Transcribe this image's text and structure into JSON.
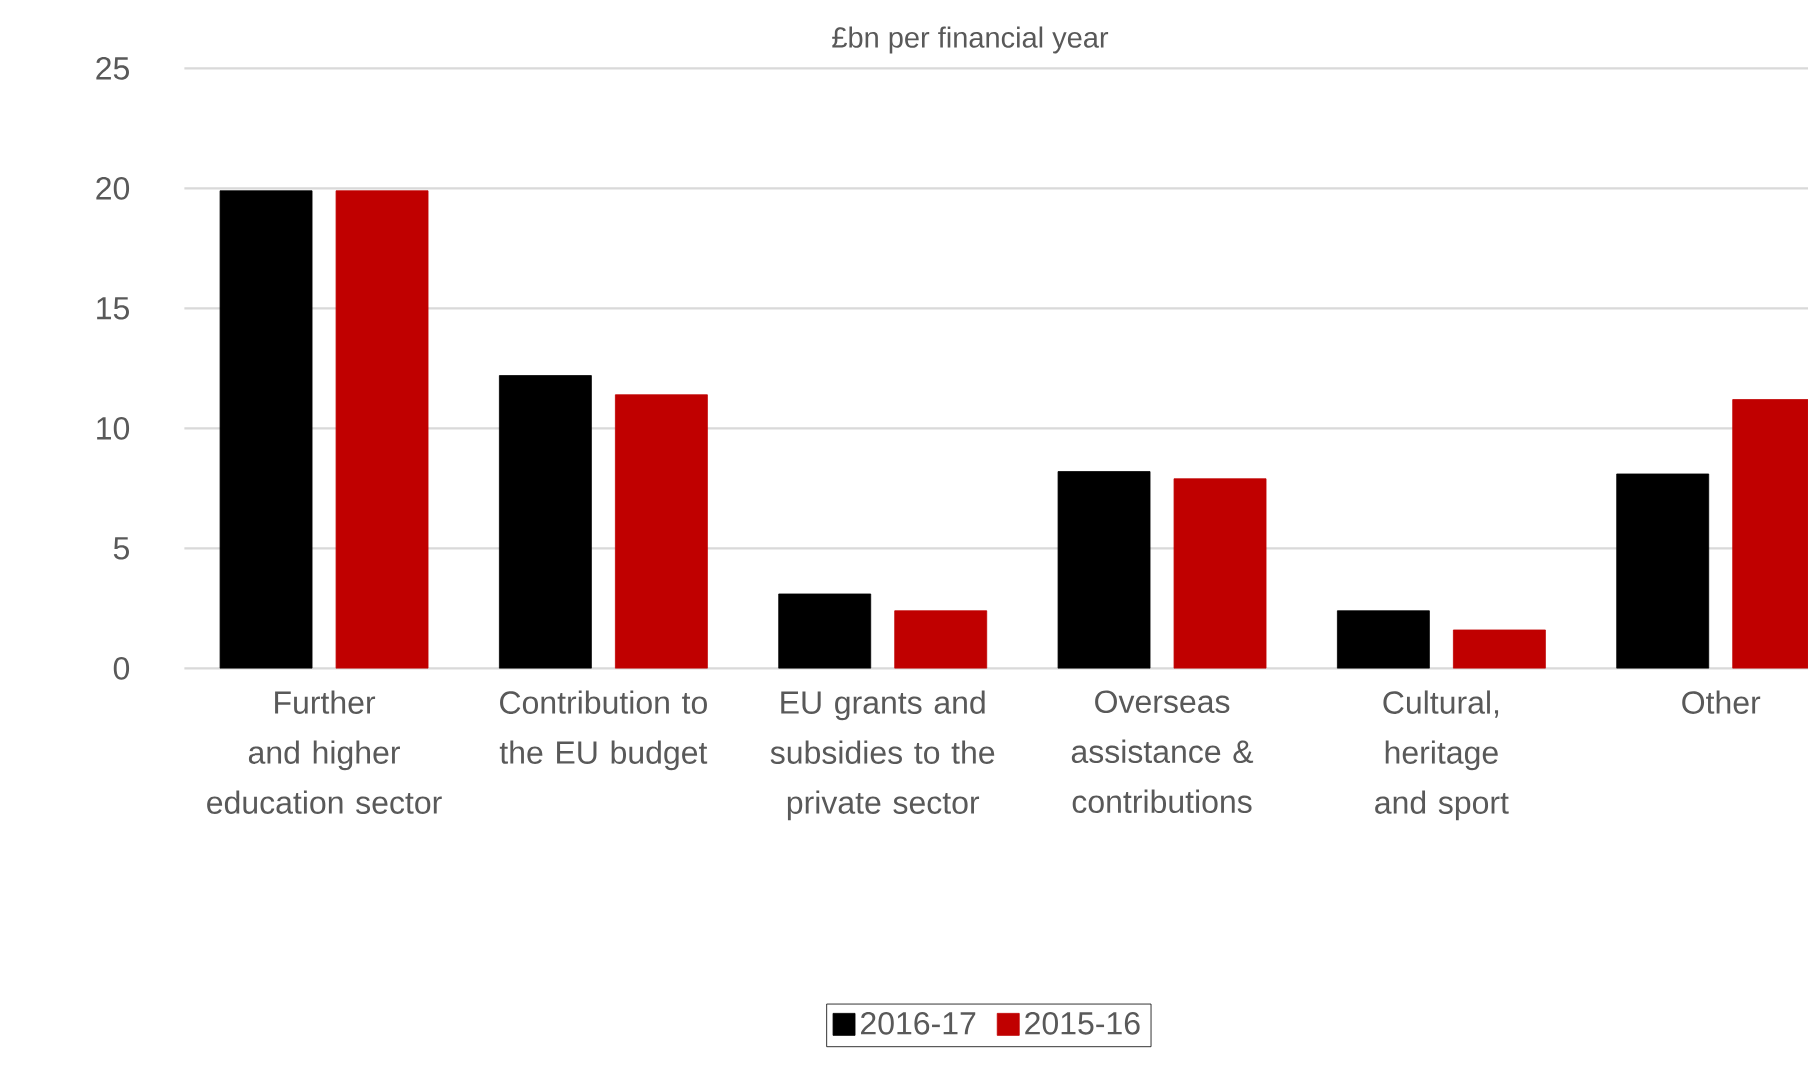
{
  "chart_data": {
    "type": "bar",
    "title": "£bn per financial year",
    "categories": [
      "Further and higher education sector",
      "Contribution to the EU budget",
      "EU grants and subsidies to the private sector",
      "Overseas assistance & contributions",
      "Cultural, heritage and sport",
      "Other"
    ],
    "series": [
      {
        "name": "2016-17",
        "color": "#000000",
        "values": [
          19.9,
          12.2,
          3.1,
          8.2,
          2.4,
          8.1
        ]
      },
      {
        "name": "2015-16",
        "color": "#c00000",
        "values": [
          19.9,
          11.4,
          2.4,
          7.9,
          1.6,
          11.2
        ]
      }
    ],
    "ylim": [
      0,
      25
    ],
    "yticks": [
      0,
      5,
      10,
      15,
      20,
      25
    ],
    "grid": "y",
    "legend": "bottom"
  }
}
